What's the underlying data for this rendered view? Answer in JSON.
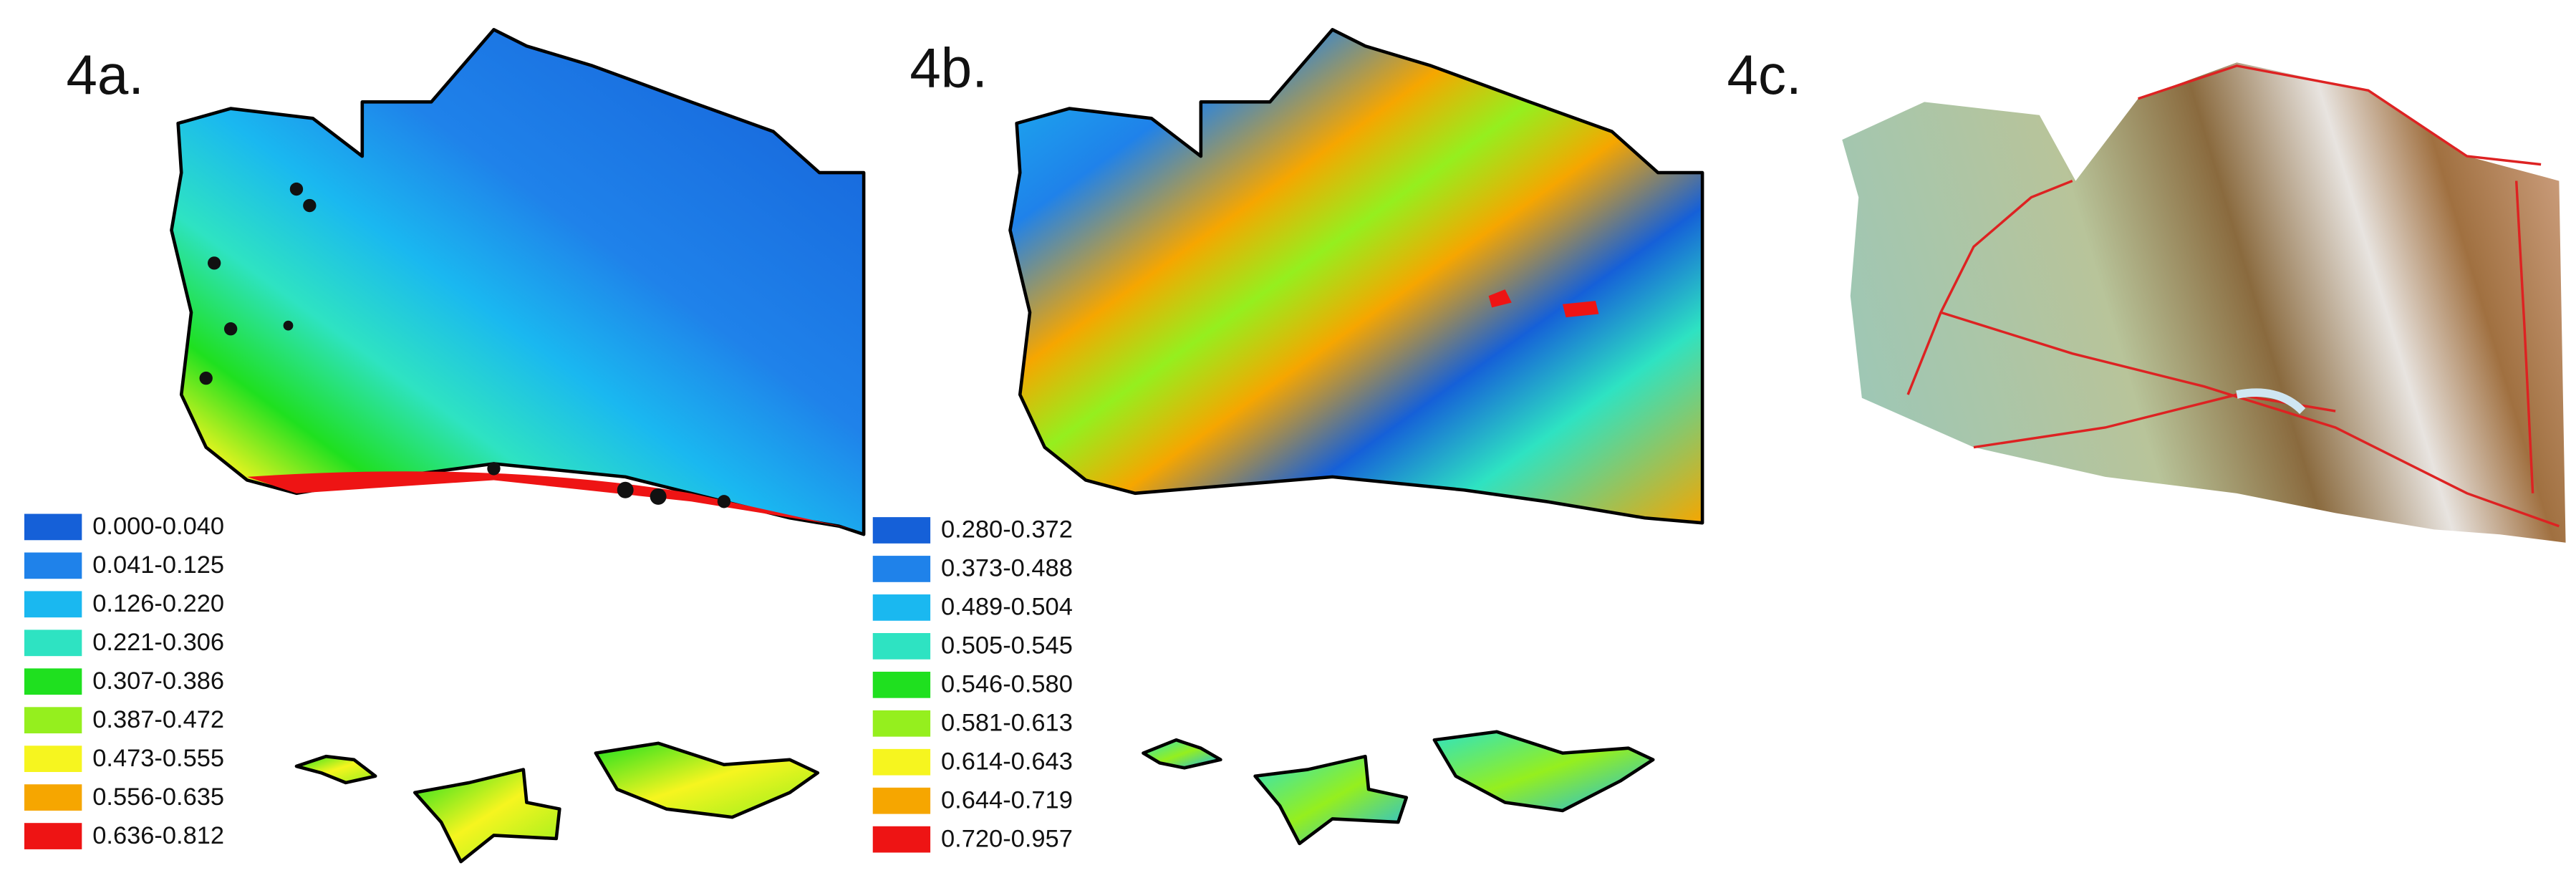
{
  "panels": [
    {
      "label": "4a.",
      "legend": [
        {
          "label": "0.000-0.040",
          "color": "#1560d8"
        },
        {
          "label": "0.041-0.125",
          "color": "#1f82ea"
        },
        {
          "label": "0.126-0.220",
          "color": "#1ab8f0"
        },
        {
          "label": "0.221-0.306",
          "color": "#2ee3c2"
        },
        {
          "label": "0.307-0.386",
          "color": "#1fe01f"
        },
        {
          "label": "0.387-0.472",
          "color": "#95ef1e"
        },
        {
          "label": "0.473-0.555",
          "color": "#f6f51f"
        },
        {
          "label": "0.556-0.635",
          "color": "#f6a600"
        },
        {
          "label": "0.636-0.812",
          "color": "#ee1414"
        }
      ]
    },
    {
      "label": "4b.",
      "legend": [
        {
          "label": "0.280-0.372",
          "color": "#1560d8"
        },
        {
          "label": "0.373-0.488",
          "color": "#1f82ea"
        },
        {
          "label": "0.489-0.504",
          "color": "#1ab8f0"
        },
        {
          "label": "0.505-0.545",
          "color": "#2ee3c2"
        },
        {
          "label": "0.546-0.580",
          "color": "#1fe01f"
        },
        {
          "label": "0.581-0.613",
          "color": "#95ef1e"
        },
        {
          "label": "0.614-0.643",
          "color": "#f6f51f"
        },
        {
          "label": "0.644-0.719",
          "color": "#f6a600"
        },
        {
          "label": "0.720-0.957",
          "color": "#ee1414"
        }
      ]
    },
    {
      "label": "4c."
    }
  ]
}
